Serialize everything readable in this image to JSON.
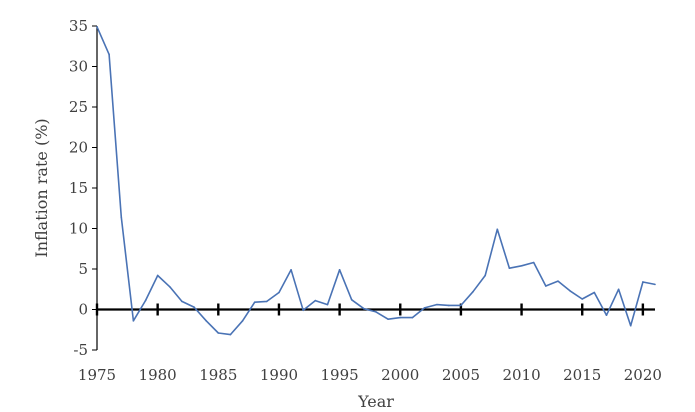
{
  "chart_data": {
    "type": "line",
    "title": "",
    "xlabel": "Year",
    "ylabel": "Inflation rate (%)",
    "xlim": [
      1975,
      2021
    ],
    "ylim": [
      -5,
      35
    ],
    "xticks": [
      1975,
      1980,
      1985,
      1990,
      1995,
      2000,
      2005,
      2010,
      2015,
      2020
    ],
    "yticks": [
      -5,
      0,
      5,
      10,
      15,
      20,
      25,
      30,
      35
    ],
    "grid": false,
    "legend": "none",
    "series": [
      {
        "color": "#4a73b5",
        "x": [
          1975,
          1976,
          1977,
          1978,
          1979,
          1980,
          1981,
          1982,
          1983,
          1984,
          1985,
          1986,
          1987,
          1988,
          1989,
          1990,
          1991,
          1992,
          1993,
          1994,
          1995,
          1996,
          1997,
          1998,
          1999,
          2000,
          2001,
          2002,
          2003,
          2004,
          2005,
          2006,
          2007,
          2008,
          2009,
          2010,
          2011,
          2012,
          2013,
          2014,
          2015,
          2016,
          2017,
          2018,
          2019,
          2020,
          2021
        ],
        "values": [
          34.9,
          31.5,
          11.4,
          -1.4,
          1.1,
          4.2,
          2.8,
          1.0,
          0.3,
          -1.4,
          -2.9,
          -3.1,
          -1.4,
          0.9,
          1.0,
          2.1,
          4.9,
          -0.1,
          1.1,
          0.6,
          4.9,
          1.2,
          0.1,
          -0.3,
          -1.2,
          -1.0,
          -1.0,
          0.2,
          0.6,
          0.5,
          0.5,
          2.2,
          4.2,
          9.9,
          5.1,
          5.4,
          5.8,
          2.9,
          3.5,
          2.3,
          1.3,
          2.1,
          -0.7,
          2.5,
          -2.0,
          3.4,
          3.1
        ]
      }
    ]
  }
}
